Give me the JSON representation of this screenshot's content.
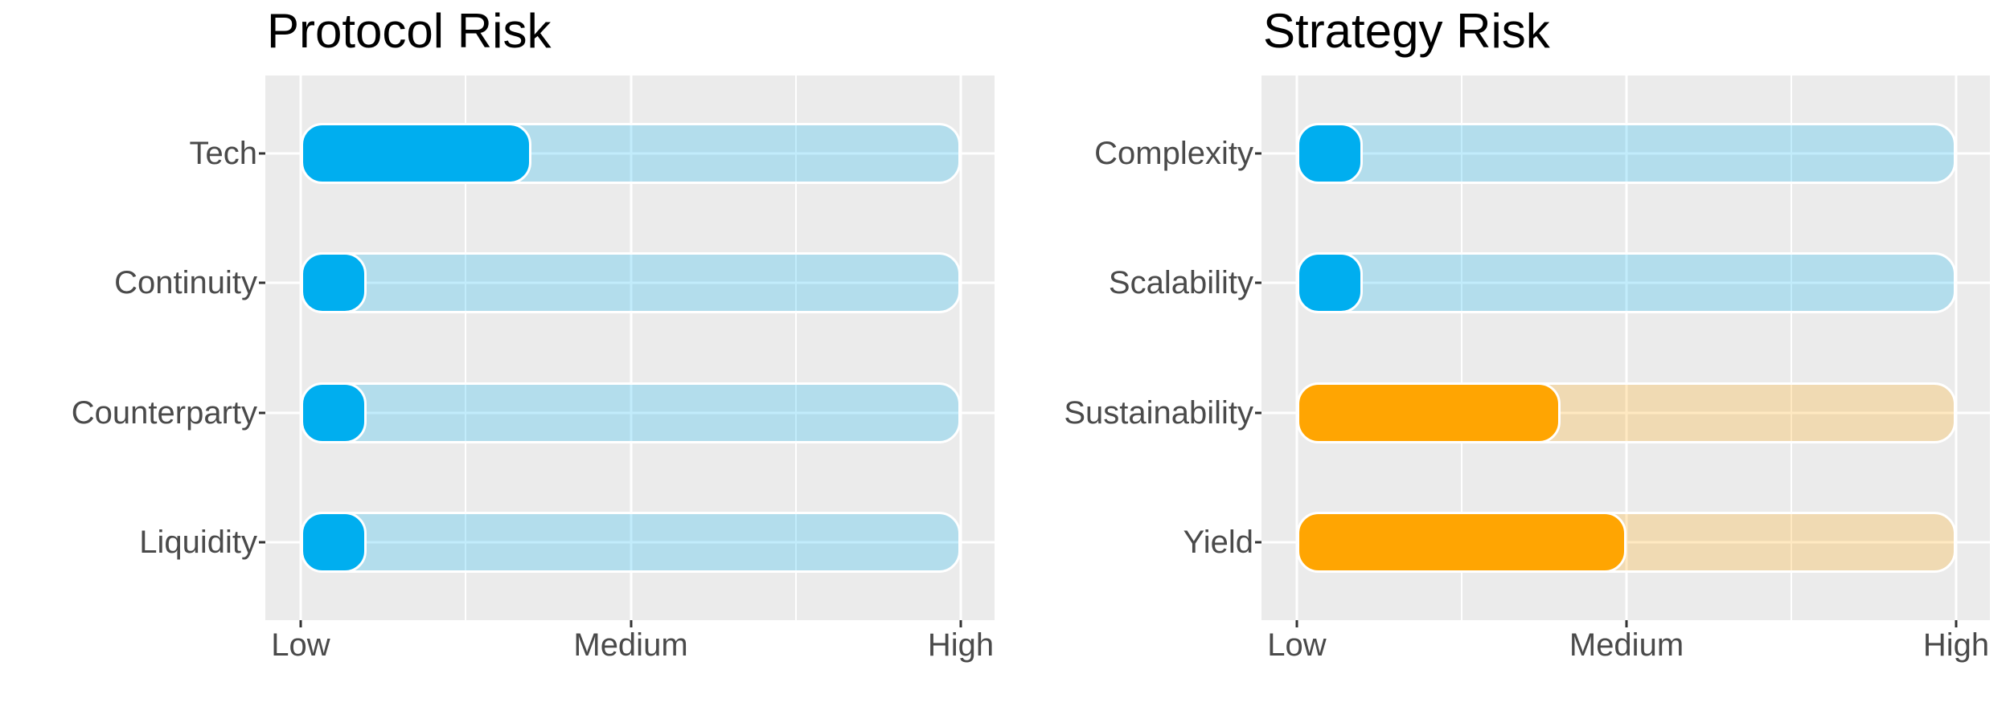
{
  "figure": {
    "background": "#FFFFFF",
    "panel_background": "#EBEBEB",
    "grid_color": "#FFFFFF",
    "title_color": "#000000",
    "axis_text_color": "#4A4A4A",
    "tick_mark_color": "#333333",
    "bar_outline_color": "#FFFFFF",
    "track_alpha": 0.24
  },
  "chart_data": [
    {
      "type": "bar",
      "orientation": "horizontal",
      "title": "Protocol Risk",
      "categories": [
        "Tech",
        "Continuity",
        "Counterparty",
        "Liquidity"
      ],
      "values": [
        35,
        10,
        10,
        10
      ],
      "bar_colors": [
        "#00AEEF",
        "#00AEEF",
        "#00AEEF",
        "#00AEEF"
      ],
      "xlabel": "",
      "ylabel": "",
      "xlim": [
        0,
        100
      ],
      "x_ticks": {
        "positions": [
          0,
          50,
          100
        ],
        "labels": [
          "Low",
          "Medium",
          "High"
        ],
        "minor_positions": [
          25,
          75
        ]
      },
      "legend": "none",
      "grid": {
        "major": true,
        "minor": true,
        "horizontal_major": true
      },
      "notes": "Each category shows a rounded filled bar over a full-width translucent track from Low to High"
    },
    {
      "type": "bar",
      "orientation": "horizontal",
      "title": "Strategy Risk",
      "categories": [
        "Complexity",
        "Scalability",
        "Sustainability",
        "Yield"
      ],
      "values": [
        10,
        10,
        40,
        50
      ],
      "bar_colors": [
        "#00AEEF",
        "#00AEEF",
        "#FFA502",
        "#FFA502"
      ],
      "xlabel": "",
      "ylabel": "",
      "xlim": [
        0,
        100
      ],
      "x_ticks": {
        "positions": [
          0,
          50,
          100
        ],
        "labels": [
          "Low",
          "Medium",
          "High"
        ],
        "minor_positions": [
          25,
          75
        ]
      },
      "legend": "none",
      "grid": {
        "major": true,
        "minor": true,
        "horizontal_major": true
      },
      "notes": "Each category shows a rounded filled bar over a full-width translucent track from Low to High"
    }
  ]
}
